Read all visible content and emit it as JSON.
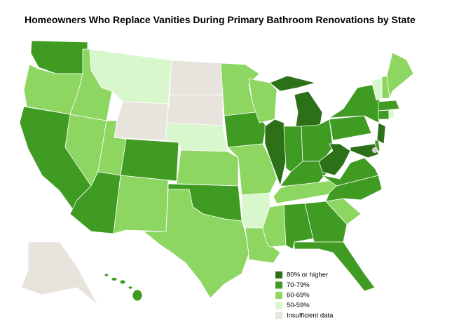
{
  "title": "Homeowners Who Replace Vanities During Primary Bathroom Renovations by State",
  "legend": {
    "items": [
      {
        "label": "80% or higher",
        "color": "#2c7018"
      },
      {
        "label": "70-79%",
        "color": "#3f9b22"
      },
      {
        "label": "60-69%",
        "color": "#8dd662"
      },
      {
        "label": "50-59%",
        "color": "#d8f7cc"
      },
      {
        "label": "Insufficient data",
        "color": "#e8e4dd"
      }
    ]
  }
}
